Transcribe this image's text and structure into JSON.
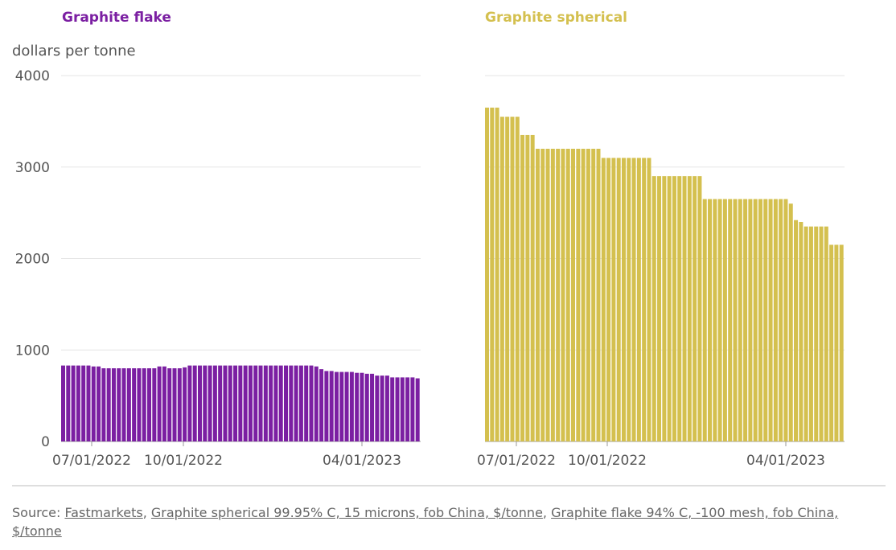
{
  "chart_data": [
    {
      "type": "bar",
      "title": "Graphite flake",
      "color": "#7b1fa2",
      "ylabel": "dollars per tonne",
      "ylim": [
        0,
        4000
      ],
      "yticks": [
        0,
        1000,
        2000,
        3000,
        4000
      ],
      "xtick_labels": [
        "07/01/2022",
        "10/01/2022",
        "04/01/2023"
      ],
      "values": [
        830,
        830,
        830,
        830,
        830,
        830,
        820,
        820,
        800,
        800,
        800,
        800,
        800,
        800,
        800,
        800,
        800,
        800,
        800,
        820,
        820,
        800,
        800,
        800,
        810,
        830,
        830,
        830,
        830,
        830,
        830,
        830,
        830,
        830,
        830,
        830,
        830,
        830,
        830,
        830,
        830,
        830,
        830,
        830,
        830,
        830,
        830,
        830,
        830,
        830,
        820,
        790,
        770,
        770,
        760,
        760,
        760,
        760,
        750,
        750,
        740,
        740,
        720,
        720,
        720,
        700,
        700,
        700,
        700,
        700,
        690
      ]
    },
    {
      "type": "bar",
      "title": "Graphite spherical",
      "color": "#d4c04f",
      "ylim": [
        0,
        4000
      ],
      "yticks": [
        0,
        1000,
        2000,
        3000,
        4000
      ],
      "xtick_labels": [
        "07/01/2022",
        "10/01/2022",
        "04/01/2023"
      ],
      "values": [
        3650,
        3650,
        3650,
        3550,
        3550,
        3550,
        3550,
        3350,
        3350,
        3350,
        3200,
        3200,
        3200,
        3200,
        3200,
        3200,
        3200,
        3200,
        3200,
        3200,
        3200,
        3200,
        3200,
        3100,
        3100,
        3100,
        3100,
        3100,
        3100,
        3100,
        3100,
        3100,
        3100,
        2900,
        2900,
        2900,
        2900,
        2900,
        2900,
        2900,
        2900,
        2900,
        2900,
        2650,
        2650,
        2650,
        2650,
        2650,
        2650,
        2650,
        2650,
        2650,
        2650,
        2650,
        2650,
        2650,
        2650,
        2650,
        2650,
        2650,
        2600,
        2420,
        2400,
        2350,
        2350,
        2350,
        2350,
        2350,
        2150,
        2150,
        2150
      ]
    }
  ],
  "source": {
    "prefix": "Source: ",
    "links": [
      "Fastmarkets",
      "Graphite spherical 99.95% C, 15 microns, fob China, $/tonne",
      "Graphite flake 94% C, -100 mesh, fob China, $/tonne"
    ]
  }
}
